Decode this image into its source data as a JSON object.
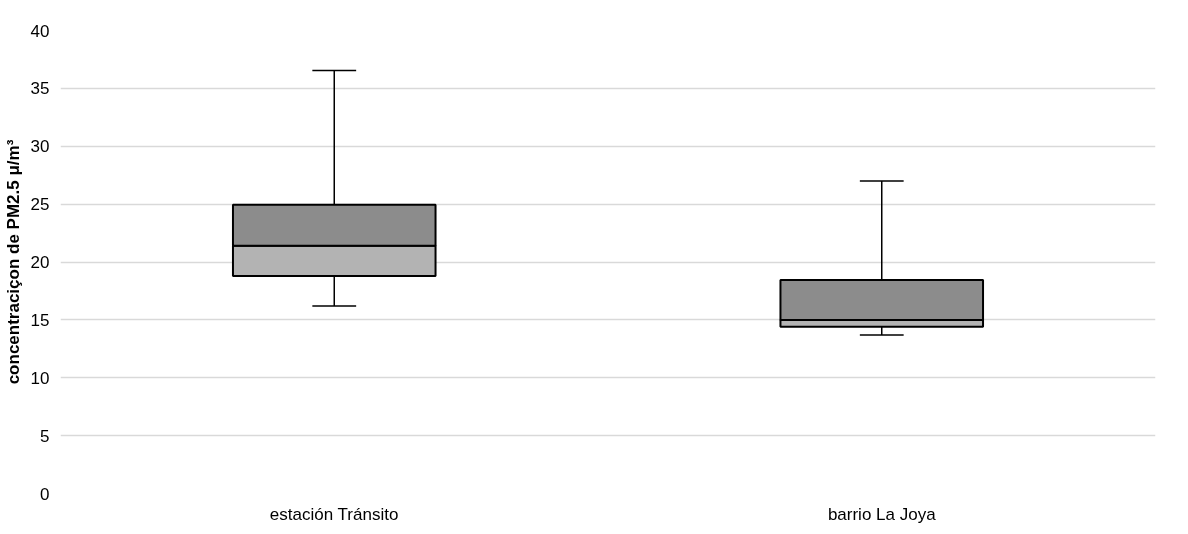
{
  "chart_data": {
    "type": "box",
    "ylabel": "concentraciçon de PM2.5 μ/m³",
    "categories": [
      "estación Tránsito",
      "barrio La Joya"
    ],
    "boxes": [
      {
        "low": 16.2,
        "q1": 18.8,
        "median": 21.4,
        "q3": 24.95,
        "high": 36.55
      },
      {
        "low": 13.7,
        "q1": 14.4,
        "median": 15.0,
        "q3": 18.45,
        "high": 27.0
      }
    ],
    "ylim": [
      0,
      40
    ],
    "yticks": [
      0,
      5,
      10,
      15,
      20,
      25,
      30,
      35,
      40
    ],
    "grid": "y"
  }
}
